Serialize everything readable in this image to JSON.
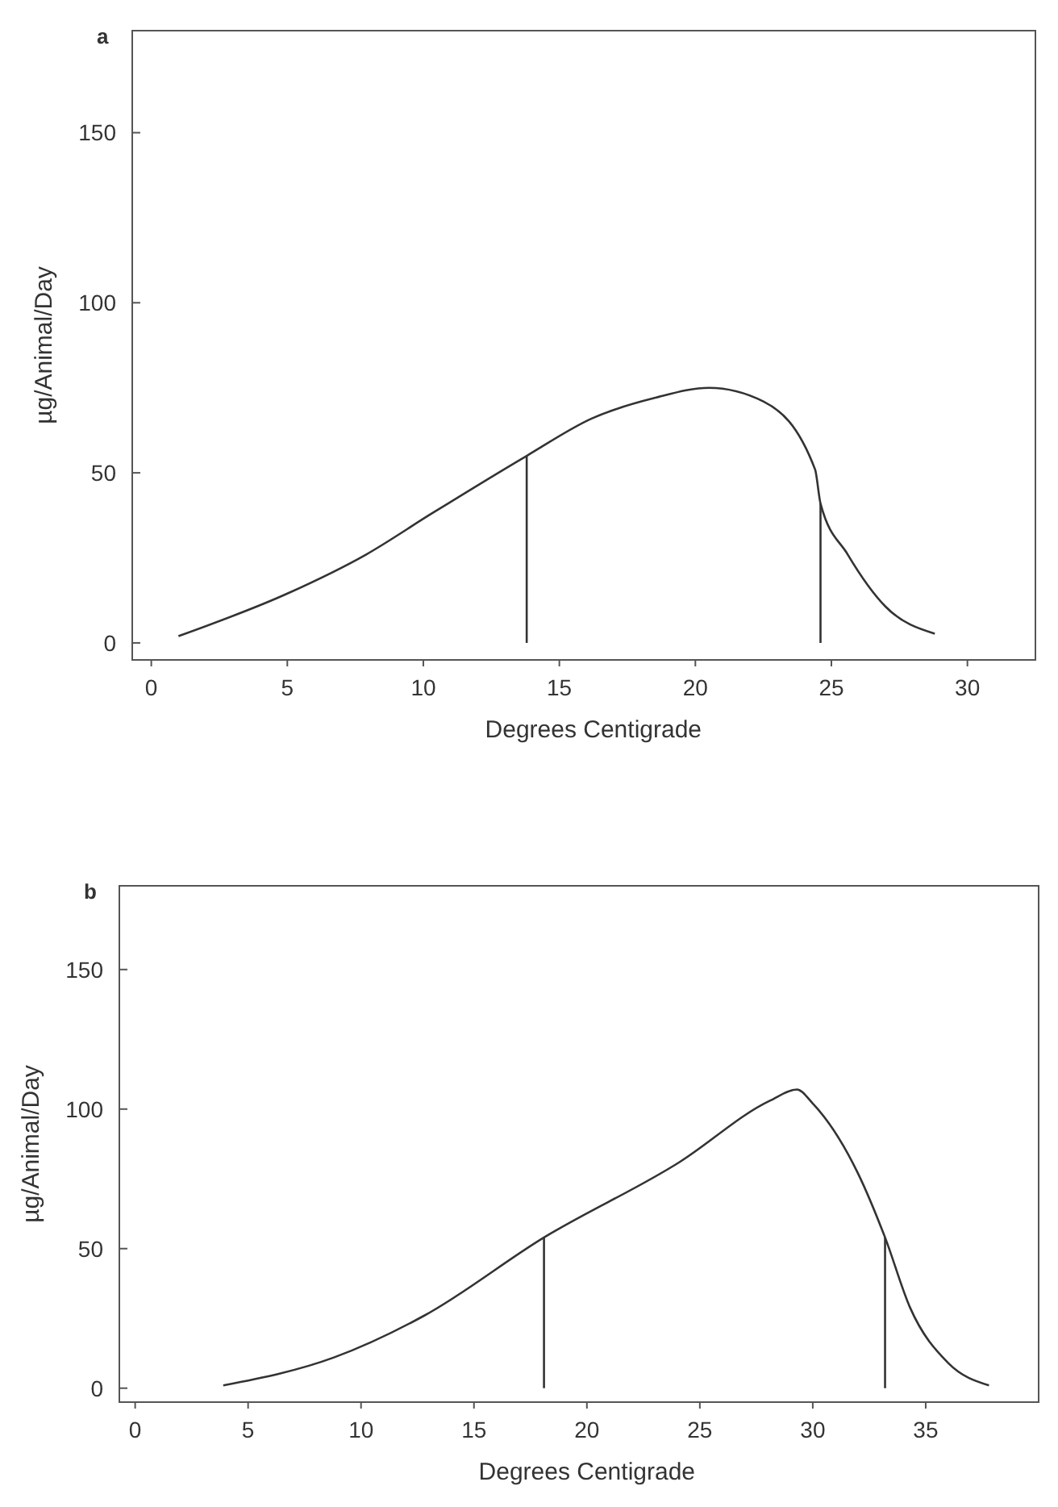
{
  "chart_data": [
    {
      "type": "line",
      "title": "a",
      "xlabel": "Degrees Centigrade",
      "ylabel": "µg/Animal/Day",
      "xlim": [
        -0.7,
        32.5
      ],
      "ylim": [
        -5,
        180
      ],
      "xticks": [
        0,
        5,
        10,
        15,
        20,
        25,
        30
      ],
      "yticks": [
        0,
        50,
        100,
        150
      ],
      "grid": false,
      "marker": "none",
      "series": [
        {
          "color": "#333333",
          "x": [
            1,
            5,
            7.9,
            10.3,
            13.8,
            16.2,
            18.5,
            20.5,
            22.5,
            24.4,
            24.6,
            25.6,
            27,
            28.8
          ],
          "values": [
            2,
            14.5,
            26,
            38,
            55,
            66,
            72,
            75,
            71,
            51,
            41,
            26,
            10.6,
            2.7
          ]
        },
        {
          "color": "#333333",
          "x": [
            13.8,
            13.8
          ],
          "values": [
            0,
            55
          ]
        },
        {
          "color": "#333333",
          "x": [
            24.6,
            24.6
          ],
          "values": [
            0,
            41
          ]
        }
      ]
    },
    {
      "type": "line",
      "title": "b",
      "xlabel": "Degrees Centigrade",
      "ylabel": "µg/Animal/Day",
      "xlim": [
        -0.7,
        40
      ],
      "ylim": [
        -5,
        180
      ],
      "xticks": [
        0,
        5,
        10,
        15,
        20,
        25,
        30,
        35
      ],
      "yticks": [
        0,
        50,
        100,
        150
      ],
      "grid": false,
      "marker": "none",
      "series": [
        {
          "color": "#333333",
          "x": [
            3.9,
            8.8,
            12.8,
            18.1,
            24.1,
            28.1,
            29.3,
            30,
            32,
            33.2,
            34.3,
            36,
            37.8
          ],
          "values": [
            1,
            11,
            26,
            54,
            81,
            103,
            107,
            102,
            77,
            54,
            29,
            9,
            1
          ]
        },
        {
          "color": "#333333",
          "x": [
            18.1,
            18.1
          ],
          "values": [
            0,
            54
          ]
        },
        {
          "color": "#333333",
          "x": [
            33.2,
            33.2
          ],
          "values": [
            0,
            54
          ]
        }
      ]
    }
  ]
}
